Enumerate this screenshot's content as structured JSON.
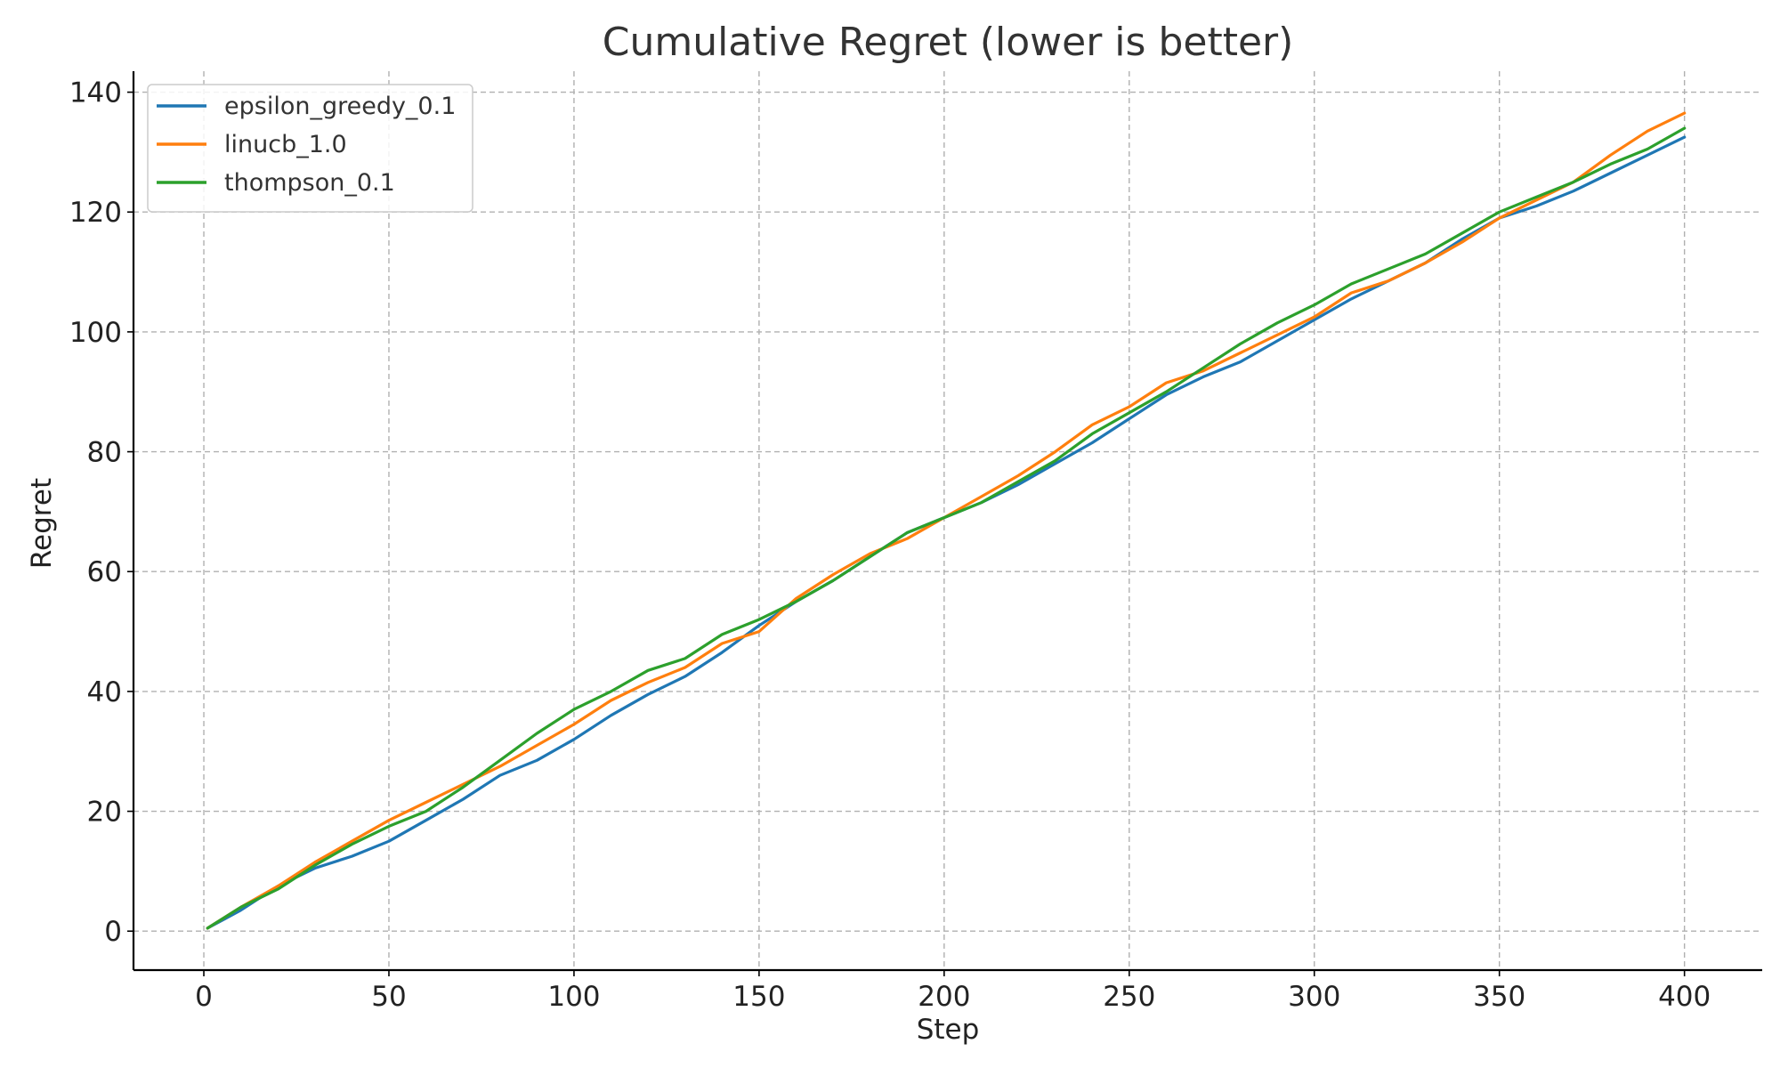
{
  "chart_data": {
    "type": "line",
    "title": "Cumulative Regret (lower is better)",
    "xlabel": "Step",
    "ylabel": "Regret",
    "xlim": [
      -19,
      421
    ],
    "ylim": [
      -6.5,
      143.5
    ],
    "xticks": [
      0,
      50,
      100,
      150,
      200,
      250,
      300,
      350,
      400
    ],
    "yticks": [
      0,
      20,
      40,
      60,
      80,
      100,
      120,
      140
    ],
    "grid": true,
    "legend_position": "top-left",
    "series": [
      {
        "name": "epsilon_greedy_0.1",
        "color": "#1f77b4",
        "x": [
          1,
          10,
          20,
          30,
          40,
          50,
          60,
          70,
          80,
          90,
          100,
          110,
          120,
          130,
          140,
          150,
          160,
          170,
          180,
          190,
          200,
          210,
          220,
          230,
          240,
          250,
          260,
          270,
          280,
          290,
          300,
          310,
          320,
          330,
          340,
          350,
          360,
          370,
          380,
          390,
          400
        ],
        "y": [
          0.5,
          3.5,
          7.5,
          10.5,
          12.5,
          15.0,
          18.5,
          22.0,
          26.0,
          28.5,
          32.0,
          36.0,
          39.5,
          42.5,
          46.5,
          51.0,
          55.0,
          58.5,
          62.5,
          66.5,
          69.0,
          71.5,
          74.5,
          78.0,
          81.5,
          85.5,
          89.5,
          92.5,
          95.0,
          98.5,
          102.0,
          105.5,
          108.5,
          111.5,
          115.5,
          119.0,
          121.0,
          123.5,
          126.5,
          129.5,
          132.5
        ]
      },
      {
        "name": "linucb_1.0",
        "color": "#ff7f0e",
        "x": [
          1,
          10,
          20,
          30,
          40,
          50,
          60,
          70,
          80,
          90,
          100,
          110,
          120,
          130,
          140,
          150,
          160,
          170,
          180,
          190,
          200,
          210,
          220,
          230,
          240,
          250,
          260,
          270,
          280,
          290,
          300,
          310,
          320,
          330,
          340,
          350,
          360,
          370,
          380,
          390,
          400
        ],
        "y": [
          0.5,
          4.0,
          7.5,
          11.5,
          15.0,
          18.5,
          21.5,
          24.5,
          27.5,
          31.0,
          34.5,
          38.5,
          41.5,
          44.0,
          48.0,
          50.0,
          55.5,
          59.5,
          63.0,
          65.5,
          69.0,
          72.5,
          76.0,
          80.0,
          84.5,
          87.5,
          91.5,
          93.5,
          96.5,
          99.5,
          102.5,
          106.5,
          108.5,
          111.5,
          115.0,
          119.0,
          122.0,
          125.0,
          129.5,
          133.5,
          136.5
        ]
      },
      {
        "name": "thompson_0.1",
        "color": "#2ca02c",
        "x": [
          1,
          10,
          20,
          30,
          40,
          50,
          60,
          70,
          80,
          90,
          100,
          110,
          120,
          130,
          140,
          150,
          160,
          170,
          180,
          190,
          200,
          210,
          220,
          230,
          240,
          250,
          260,
          270,
          280,
          290,
          300,
          310,
          320,
          330,
          340,
          350,
          360,
          370,
          380,
          390,
          400
        ],
        "y": [
          0.5,
          4.0,
          7.0,
          11.0,
          14.5,
          17.5,
          20.0,
          24.0,
          28.5,
          33.0,
          37.0,
          40.0,
          43.5,
          45.5,
          49.5,
          52.0,
          55.0,
          58.5,
          62.5,
          66.5,
          69.0,
          71.5,
          75.0,
          78.5,
          83.0,
          86.5,
          90.0,
          94.0,
          98.0,
          101.5,
          104.5,
          108.0,
          110.5,
          113.0,
          116.5,
          120.0,
          122.5,
          125.0,
          128.0,
          130.5,
          134.0
        ]
      }
    ]
  }
}
